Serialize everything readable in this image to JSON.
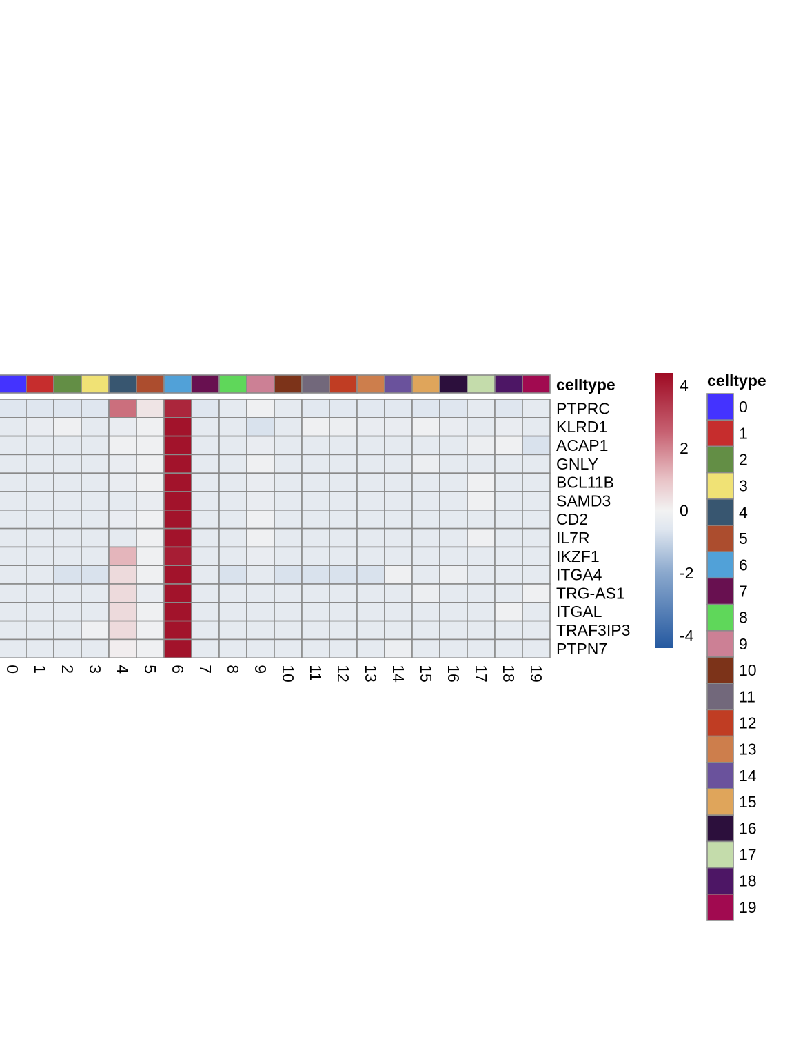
{
  "chart_data": {
    "type": "heatmap",
    "annotation_title": "celltype",
    "columns": [
      "0",
      "1",
      "2",
      "3",
      "4",
      "5",
      "6",
      "7",
      "8",
      "9",
      "10",
      "11",
      "12",
      "13",
      "14",
      "15",
      "16",
      "17",
      "18",
      "19"
    ],
    "rows": [
      "PTPRC",
      "KLRD1",
      "ACAP1",
      "GNLY",
      "BCL11B",
      "SAMD3",
      "CD2",
      "IL7R",
      "IKZF1",
      "ITGA4",
      "TRG-AS1",
      "ITGAL",
      "TRAF3IP3",
      "PTPN7"
    ],
    "values": [
      [
        -0.6,
        -0.6,
        -0.6,
        -0.6,
        2.3,
        0.3,
        3.8,
        -0.6,
        -0.4,
        -0.1,
        -0.4,
        -0.5,
        -0.5,
        -0.5,
        -0.5,
        -0.6,
        -0.6,
        -0.4,
        -0.6,
        -0.4
      ],
      [
        -0.4,
        -0.3,
        -0.1,
        -0.4,
        -0.3,
        -0.1,
        4.2,
        -0.4,
        -0.4,
        -0.7,
        -0.4,
        -0.1,
        -0.2,
        -0.3,
        -0.3,
        -0.1,
        -0.3,
        -0.4,
        -0.3,
        -0.4
      ],
      [
        -0.4,
        -0.4,
        -0.4,
        -0.4,
        -0.1,
        -0.1,
        4.2,
        -0.4,
        -0.4,
        -0.3,
        -0.4,
        -0.4,
        -0.4,
        -0.4,
        -0.4,
        -0.4,
        -0.4,
        -0.2,
        -0.1,
        -0.7
      ],
      [
        -0.4,
        -0.4,
        -0.4,
        -0.4,
        -0.3,
        -0.1,
        4.2,
        -0.4,
        -0.4,
        -0.1,
        -0.4,
        -0.4,
        -0.4,
        -0.4,
        -0.4,
        -0.2,
        -0.4,
        -0.4,
        -0.4,
        -0.4
      ],
      [
        -0.4,
        -0.4,
        -0.4,
        -0.4,
        -0.3,
        -0.1,
        4.2,
        -0.4,
        -0.4,
        -0.3,
        -0.4,
        -0.4,
        -0.4,
        -0.4,
        -0.4,
        -0.4,
        -0.4,
        -0.1,
        -0.4,
        -0.4
      ],
      [
        -0.4,
        -0.4,
        -0.4,
        -0.4,
        -0.4,
        -0.3,
        4.2,
        -0.4,
        -0.4,
        -0.3,
        -0.4,
        -0.4,
        -0.4,
        -0.4,
        -0.4,
        -0.4,
        -0.4,
        -0.1,
        -0.4,
        -0.4
      ],
      [
        -0.4,
        -0.4,
        -0.4,
        -0.4,
        -0.3,
        -0.1,
        4.2,
        -0.4,
        -0.4,
        -0.1,
        -0.4,
        -0.4,
        -0.4,
        -0.4,
        -0.4,
        -0.4,
        -0.4,
        -0.4,
        -0.4,
        -0.4
      ],
      [
        -0.4,
        -0.4,
        -0.4,
        -0.4,
        -0.4,
        -0.1,
        4.2,
        -0.4,
        -0.4,
        -0.1,
        -0.4,
        -0.4,
        -0.4,
        -0.4,
        -0.4,
        -0.4,
        -0.4,
        -0.1,
        -0.4,
        -0.4
      ],
      [
        -0.4,
        -0.4,
        -0.4,
        -0.4,
        1.2,
        -0.1,
        4.0,
        -0.4,
        -0.4,
        -0.3,
        -0.4,
        -0.4,
        -0.4,
        -0.4,
        -0.4,
        -0.4,
        -0.4,
        -0.4,
        -0.4,
        -0.4
      ],
      [
        -0.4,
        -0.4,
        -0.7,
        -0.7,
        0.5,
        -0.1,
        4.2,
        -0.4,
        -0.7,
        -0.4,
        -0.7,
        -0.7,
        -0.7,
        -0.7,
        -0.1,
        -0.4,
        -0.2,
        -0.4,
        -0.4,
        -0.4
      ],
      [
        -0.4,
        -0.4,
        -0.4,
        -0.4,
        0.5,
        -0.3,
        4.2,
        -0.4,
        -0.4,
        -0.4,
        -0.4,
        -0.4,
        -0.4,
        -0.4,
        -0.4,
        -0.2,
        -0.4,
        -0.4,
        -0.4,
        -0.1
      ],
      [
        -0.4,
        -0.4,
        -0.4,
        -0.4,
        0.5,
        -0.1,
        4.2,
        -0.4,
        -0.4,
        -0.4,
        -0.4,
        -0.4,
        -0.4,
        -0.4,
        -0.4,
        -0.4,
        -0.4,
        -0.4,
        -0.1,
        -0.4
      ],
      [
        -0.4,
        -0.4,
        -0.4,
        -0.1,
        0.5,
        -0.1,
        4.2,
        -0.4,
        -0.4,
        -0.4,
        -0.4,
        -0.4,
        -0.4,
        -0.4,
        -0.4,
        -0.4,
        -0.4,
        -0.4,
        -0.4,
        -0.4
      ],
      [
        -0.4,
        -0.4,
        -0.4,
        -0.4,
        0.1,
        -0.1,
        4.2,
        -0.4,
        -0.4,
        -0.4,
        -0.4,
        -0.4,
        -0.4,
        -0.4,
        -0.2,
        -0.4,
        -0.4,
        -0.4,
        -0.4,
        -0.4
      ]
    ],
    "colorbar": {
      "ticks": [
        4,
        2,
        0,
        -2,
        -4
      ],
      "tick_labels": [
        "4",
        "2",
        "0",
        "-2",
        "-4"
      ],
      "range": [
        -4.4,
        4.4
      ],
      "stops": [
        {
          "value": -4.4,
          "color": "#2559a0"
        },
        {
          "value": -2.0,
          "color": "#8aa8cd"
        },
        {
          "value": -0.6,
          "color": "#dfe6ef"
        },
        {
          "value": 0.0,
          "color": "#f2f2f2"
        },
        {
          "value": 1.0,
          "color": "#e8c2c6"
        },
        {
          "value": 2.5,
          "color": "#c76272"
        },
        {
          "value": 4.4,
          "color": "#9e0a23"
        }
      ]
    },
    "celltype_colors": [
      "#4433ff",
      "#c62d2d",
      "#638e45",
      "#f0e275",
      "#385670",
      "#ac4d2e",
      "#51a1d8",
      "#681050",
      "#5fd75a",
      "#cc8095",
      "#7c3319",
      "#72687b",
      "#c03d23",
      "#cd7e4c",
      "#6a529c",
      "#dfa55b",
      "#2c0f3c",
      "#c4dcab",
      "#4d1665",
      "#a10a50"
    ],
    "legend": {
      "title": "celltype",
      "labels": [
        "0",
        "1",
        "2",
        "3",
        "4",
        "5",
        "6",
        "7",
        "8",
        "9",
        "10",
        "11",
        "12",
        "13",
        "14",
        "15",
        "16",
        "17",
        "18",
        "19"
      ],
      "placement": "right"
    }
  }
}
